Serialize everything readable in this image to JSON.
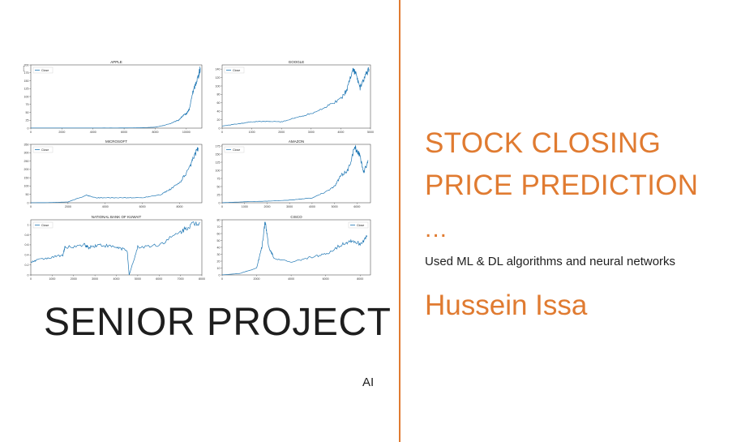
{
  "slide": {
    "title_line1": "STOCK CLOSING",
    "title_line2": "PRICE PREDICTION",
    "ellipsis": "...",
    "description": "Used ML & DL algorithms and neural networks",
    "author": "Hussein Issa",
    "headline": "SENIOR PROJECT",
    "tag": "AI",
    "cell_prompt": "[ ]"
  },
  "colors": {
    "accent": "#e07b31",
    "series": "#1f77b4",
    "text": "#1e1e1e"
  },
  "chart_data": [
    {
      "type": "line",
      "title": "APPLE",
      "legend": [
        "Close"
      ],
      "legend_position": "upper-left",
      "xlim": [
        0,
        11000
      ],
      "ylim": [
        0,
        200
      ],
      "xticks": [
        0,
        2000,
        4000,
        6000,
        8000,
        10000
      ],
      "yticks": [
        0,
        25,
        50,
        75,
        100,
        125,
        150,
        175,
        200
      ],
      "series": [
        {
          "name": "Close",
          "x": [
            0,
            2000,
            4000,
            6000,
            7000,
            8000,
            8500,
            9000,
            9500,
            9800,
            10000,
            10200,
            10400,
            10600,
            10800,
            10900
          ],
          "y": [
            0.5,
            0.5,
            0.5,
            0.6,
            1,
            3,
            8,
            15,
            25,
            40,
            45,
            60,
            110,
            140,
            170,
            190
          ]
        }
      ]
    },
    {
      "type": "line",
      "title": "GOOGLE",
      "legend": [
        "Close"
      ],
      "legend_position": "upper-left",
      "xlim": [
        0,
        5000
      ],
      "ylim": [
        0,
        150
      ],
      "xticks": [
        0,
        1000,
        2000,
        3000,
        4000,
        5000
      ],
      "yticks": [
        0,
        20,
        40,
        60,
        80,
        100,
        120,
        140
      ],
      "series": [
        {
          "name": "Close",
          "x": [
            0,
            500,
            1000,
            1500,
            2000,
            2500,
            3000,
            3500,
            4000,
            4200,
            4400,
            4500,
            4650,
            4800,
            4950
          ],
          "y": [
            5,
            10,
            15,
            16,
            15,
            25,
            35,
            50,
            70,
            90,
            140,
            130,
            95,
            120,
            140
          ]
        }
      ]
    },
    {
      "type": "line",
      "title": "MICROSOFT",
      "legend": [
        "Close"
      ],
      "legend_position": "upper-left",
      "xlim": [
        0,
        9200
      ],
      "ylim": [
        0,
        350
      ],
      "xticks": [
        0,
        2000,
        4000,
        6000,
        8000
      ],
      "yticks": [
        0,
        50,
        100,
        150,
        200,
        250,
        300,
        350
      ],
      "series": [
        {
          "name": "Close",
          "x": [
            0,
            1000,
            2000,
            3000,
            3500,
            4000,
            5000,
            6000,
            7000,
            7500,
            8000,
            8500,
            8800,
            9000
          ],
          "y": [
            0.1,
            1,
            5,
            45,
            30,
            30,
            30,
            30,
            50,
            80,
            120,
            200,
            280,
            330
          ]
        }
      ]
    },
    {
      "type": "line",
      "title": "AMAZON",
      "legend": [
        "Close"
      ],
      "legend_position": "upper-left",
      "xlim": [
        0,
        6600
      ],
      "ylim": [
        0,
        180
      ],
      "xticks": [
        0,
        1000,
        2000,
        3000,
        4000,
        5000,
        6000
      ],
      "yticks": [
        0,
        25,
        50,
        75,
        100,
        125,
        150,
        175
      ],
      "series": [
        {
          "name": "Close",
          "x": [
            0,
            1000,
            2000,
            3000,
            4000,
            4500,
            5000,
            5300,
            5600,
            5900,
            6100,
            6300,
            6500
          ],
          "y": [
            0.1,
            3,
            5,
            8,
            15,
            30,
            50,
            85,
            100,
            170,
            150,
            95,
            130
          ]
        }
      ]
    },
    {
      "type": "line",
      "title": "NATIONAL BANK OF KUWAIT",
      "legend": [
        "Close"
      ],
      "legend_position": "upper-left",
      "xlim": [
        0,
        8000
      ],
      "ylim": [
        0,
        1.1
      ],
      "xticks": [
        0,
        1000,
        2000,
        3000,
        4000,
        5000,
        6000,
        7000,
        8000
      ],
      "yticks": [
        0.0,
        0.2,
        0.4,
        0.6,
        0.8,
        1.0
      ],
      "series": [
        {
          "name": "Close",
          "x": [
            0,
            300,
            1000,
            1500,
            1600,
            2500,
            2700,
            3200,
            4000,
            4500,
            4600,
            5000,
            6000,
            7000,
            7500,
            7900
          ],
          "y": [
            0.25,
            0.3,
            0.35,
            0.4,
            0.55,
            0.6,
            0.55,
            0.6,
            0.55,
            0.5,
            0.0,
            0.55,
            0.6,
            0.85,
            1.0,
            1.05
          ]
        }
      ]
    },
    {
      "type": "line",
      "title": "CISCO",
      "legend": [
        "Close"
      ],
      "legend_position": "upper-right",
      "xlim": [
        0,
        8600
      ],
      "ylim": [
        0,
        80
      ],
      "xticks": [
        0,
        2000,
        4000,
        6000,
        8000
      ],
      "yticks": [
        0,
        10,
        20,
        30,
        40,
        50,
        60,
        70,
        80
      ],
      "series": [
        {
          "name": "Close",
          "x": [
            0,
            1000,
            2000,
            2300,
            2500,
            2700,
            3000,
            4000,
            5000,
            6000,
            7000,
            7500,
            8000,
            8400
          ],
          "y": [
            0.1,
            2,
            10,
            40,
            78,
            40,
            25,
            18,
            25,
            30,
            45,
            50,
            45,
            55
          ]
        }
      ]
    }
  ]
}
